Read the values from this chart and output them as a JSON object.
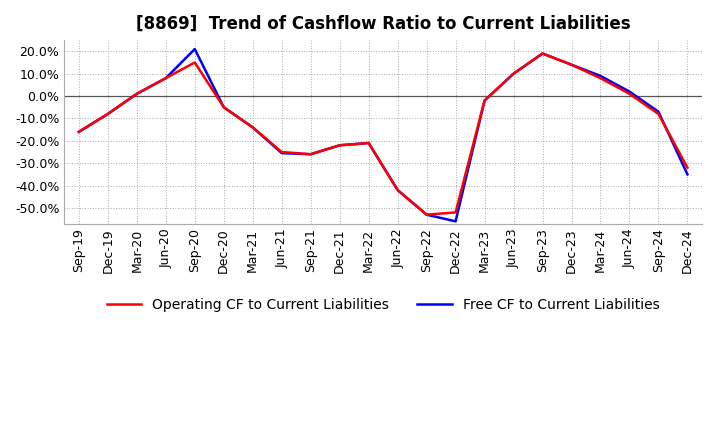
{
  "title": "[8869]  Trend of Cashflow Ratio to Current Liabilities",
  "x_labels": [
    "Sep-19",
    "Dec-19",
    "Mar-20",
    "Jun-20",
    "Sep-20",
    "Dec-20",
    "Mar-21",
    "Jun-21",
    "Sep-21",
    "Dec-21",
    "Mar-22",
    "Jun-22",
    "Sep-22",
    "Dec-22",
    "Mar-23",
    "Jun-23",
    "Sep-23",
    "Dec-23",
    "Mar-24",
    "Jun-24",
    "Sep-24",
    "Dec-24"
  ],
  "operating_cf": [
    -16.0,
    -8.0,
    1.0,
    8.0,
    15.0,
    -5.0,
    -14.0,
    -25.0,
    -26.0,
    -22.0,
    -21.0,
    -42.0,
    -53.0,
    -52.0,
    -2.0,
    10.0,
    19.0,
    14.0,
    8.0,
    1.0,
    -8.0,
    -32.0
  ],
  "free_cf": [
    -16.0,
    -8.0,
    1.0,
    8.0,
    21.0,
    -5.0,
    -14.0,
    -25.5,
    -26.0,
    -22.0,
    -21.0,
    -42.0,
    -53.0,
    -56.0,
    -2.0,
    10.0,
    19.0,
    14.0,
    9.0,
    2.0,
    -7.0,
    -35.0
  ],
  "ylim": [
    -57,
    25
  ],
  "yticks": [
    20.0,
    10.0,
    0.0,
    -10.0,
    -20.0,
    -30.0,
    -40.0,
    -50.0
  ],
  "operating_color": "#ff0000",
  "free_color": "#0000ff",
  "grid_color": "#aaaaaa",
  "zero_line_color": "#555555",
  "background_color": "#ffffff",
  "title_fontsize": 12,
  "legend_fontsize": 10,
  "tick_fontsize": 9
}
